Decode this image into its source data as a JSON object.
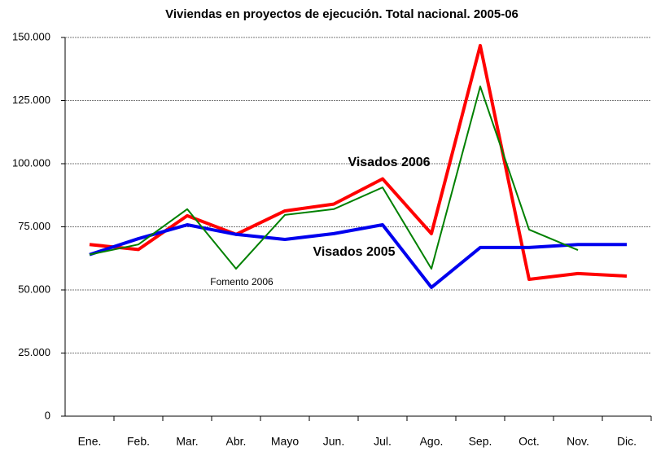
{
  "chart_data": {
    "type": "line",
    "title": "Viviendas en proyectos de ejecución. Total nacional. 2005-06",
    "categories": [
      "Ene.",
      "Feb.",
      "Mar.",
      "Abr.",
      "Mayo",
      "Jun.",
      "Jul.",
      "Ago.",
      "Sep.",
      "Oct.",
      "Nov.",
      "Dic."
    ],
    "series": [
      {
        "name": "Visados 2006",
        "color": "#ff0000",
        "values": [
          68000,
          66000,
          79400,
          72000,
          81300,
          84000,
          94000,
          72300,
          146800,
          54200,
          56500,
          55500
        ]
      },
      {
        "name": "Visados 2005",
        "color": "#0000ee",
        "values": [
          64000,
          70300,
          75800,
          72000,
          70000,
          72300,
          75800,
          51000,
          66800,
          66800,
          68000,
          68000
        ]
      },
      {
        "name": "Fomento 2006",
        "color": "#008000",
        "values": [
          64000,
          68000,
          82000,
          58400,
          79700,
          82000,
          90600,
          58400,
          130600,
          73900,
          65800,
          null
        ]
      }
    ],
    "ylim": [
      0,
      150000
    ],
    "yticks": [
      0,
      {
        "value": 25000,
        "label": "25.000"
      },
      {
        "value": 50000,
        "label": "50.000"
      },
      {
        "value": 75000,
        "label": "75.000"
      },
      {
        "value": 100000,
        "label": "100.000"
      },
      {
        "value": 125000,
        "label": "125.000"
      },
      {
        "value": 150000,
        "label": "150.000"
      }
    ],
    "grid": true
  }
}
